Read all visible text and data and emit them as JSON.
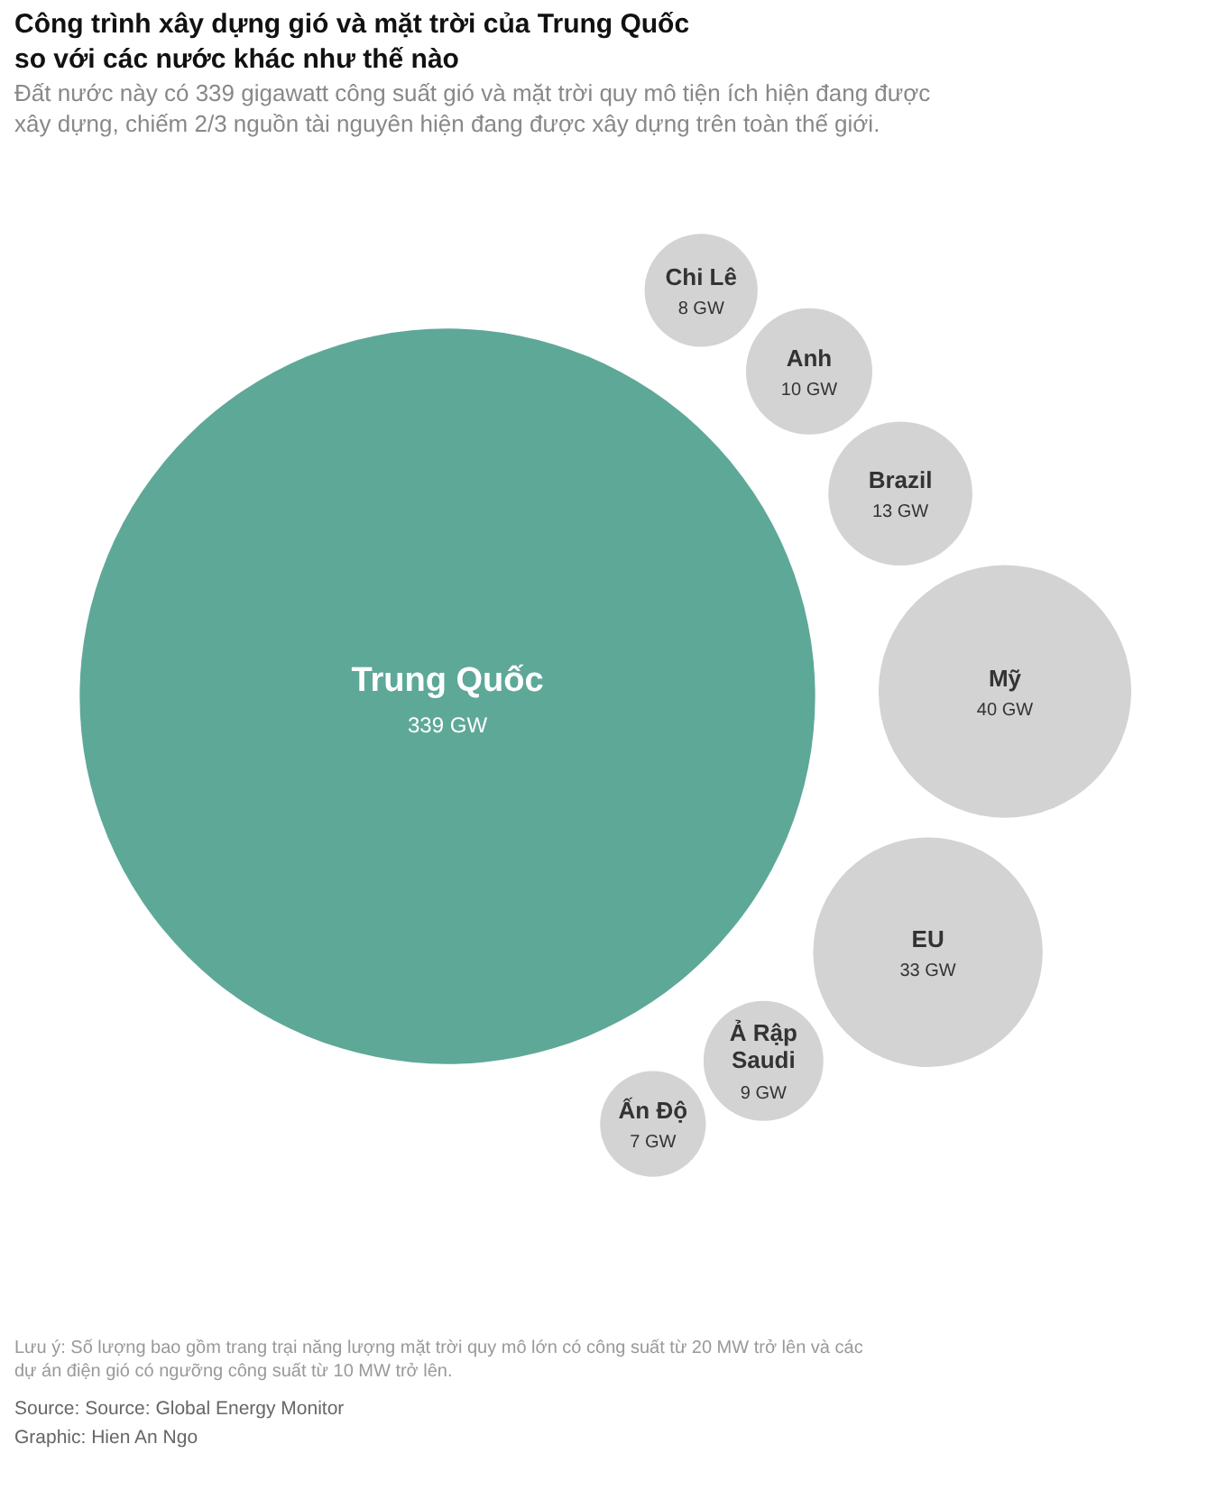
{
  "chart_data": {
    "type": "other",
    "title": "Công trình xây dựng gió và mặt trời của Trung Quốc so với các nước khác như thế nào",
    "subtitle": "Đất nước này có 339 gigawatt công suất gió và mặt trời quy mô tiện ích hiện đang được xây dựng, chiếm 2/3 nguồn tài nguyên hiện đang được xây dựng trên toàn thế giới.",
    "categories": [
      "Trung Quốc",
      "Chi Lê",
      "Anh",
      "Brazil",
      "Mỹ",
      "EU",
      "Ả Rập Saudi",
      "Ấn Độ"
    ],
    "values": [
      339,
      8,
      10,
      13,
      40,
      33,
      9,
      7
    ],
    "value_labels": [
      "339 GW",
      "8 GW",
      "10 GW",
      "13 GW",
      "40 GW",
      "33 GW",
      "9 GW",
      "7 GW"
    ],
    "colors": [
      "#5ea898",
      "#d3d3d3",
      "#d3d3d3",
      "#d3d3d3",
      "#d3d3d3",
      "#d3d3d3",
      "#d3d3d3",
      "#d3d3d3"
    ],
    "annotations": [
      "Lưu ý: Số lượng bao gồm trang trại năng lượng mặt trời quy mô lớn có công suất từ 20 MW trở lên và các dự án điện gió có ngưỡng công suất từ 10 MW trở lên.",
      "Source: Source: Global Energy Monitor",
      "Graphic: Hien An Ngo"
    ]
  }
}
